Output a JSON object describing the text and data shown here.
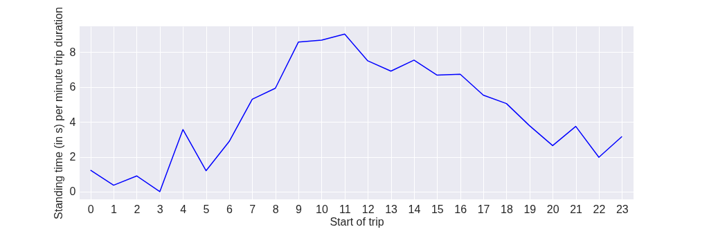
{
  "chart_data": {
    "type": "line",
    "xlabel": "Start of trip",
    "ylabel": "Standing time (in s) per minute trip duration",
    "x": [
      0,
      1,
      2,
      3,
      4,
      5,
      6,
      7,
      8,
      9,
      10,
      11,
      12,
      13,
      14,
      15,
      16,
      17,
      18,
      19,
      20,
      21,
      22,
      23
    ],
    "series": [
      {
        "color": "#0000ff",
        "values": [
          1.23,
          0.37,
          0.9,
          0.0,
          3.56,
          1.2,
          2.87,
          5.3,
          5.93,
          8.58,
          8.69,
          9.03,
          7.5,
          6.91,
          7.54,
          6.68,
          6.73,
          5.53,
          5.05,
          3.78,
          2.64,
          3.74,
          1.97,
          3.16
        ]
      }
    ],
    "xlim": [
      -0.47,
      23.5
    ],
    "xticks": [
      0,
      1,
      2,
      3,
      4,
      5,
      6,
      7,
      8,
      9,
      10,
      11,
      12,
      13,
      14,
      15,
      16,
      17,
      18,
      19,
      20,
      21,
      22,
      23
    ],
    "ylim": [
      -0.44,
      9.48
    ],
    "yticks": [
      0,
      2,
      4,
      6,
      8
    ],
    "grid": true,
    "marker": "none",
    "line_style": "solid"
  }
}
